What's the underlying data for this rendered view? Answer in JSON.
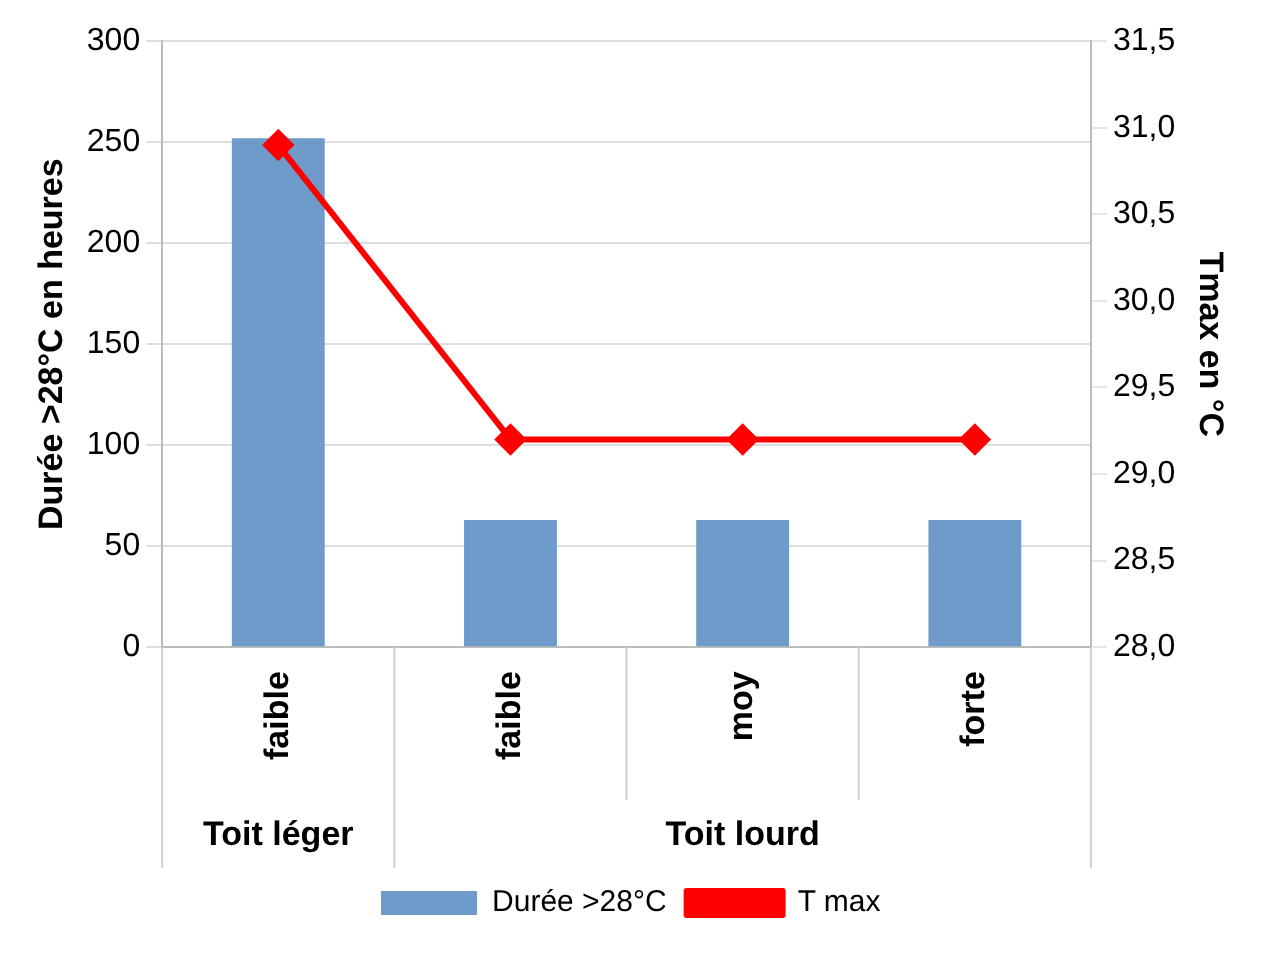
{
  "chart_data": {
    "type": "bar",
    "ylabel": "Durée >28°C en heures",
    "y2label": "Tmax en °C",
    "categories": [
      "faible",
      "faible",
      "moy",
      "forte"
    ],
    "annotations": [
      "Toit léger",
      "Toit lourd"
    ],
    "series": [
      {
        "name": "Durée >28°C",
        "color": "#6e9bc9",
        "values": [
          252,
          63,
          63,
          63
        ]
      },
      {
        "name": "T max",
        "type": "line",
        "axis": "y2",
        "color": "#ff0000",
        "marker": "diamond",
        "values": [
          30.9,
          29.2,
          29.2,
          29.2
        ]
      }
    ],
    "ylim": [
      0,
      300
    ],
    "yticks": [
      0,
      50,
      100,
      150,
      200,
      250,
      300
    ],
    "y2lim": [
      28,
      31.5
    ],
    "y2ticks": [
      {
        "value": 28,
        "label": "28,0"
      },
      {
        "value": 28.5,
        "label": "28,5"
      },
      {
        "value": 29,
        "label": "29,0"
      },
      {
        "value": 29.5,
        "label": "29,5"
      },
      {
        "value": 30,
        "label": "30,0"
      },
      {
        "value": 30.5,
        "label": "30,5"
      },
      {
        "value": 31,
        "label": "31,0"
      },
      {
        "value": 31.5,
        "label": "31,5"
      }
    ],
    "grid": "y",
    "legend": "bottom"
  }
}
